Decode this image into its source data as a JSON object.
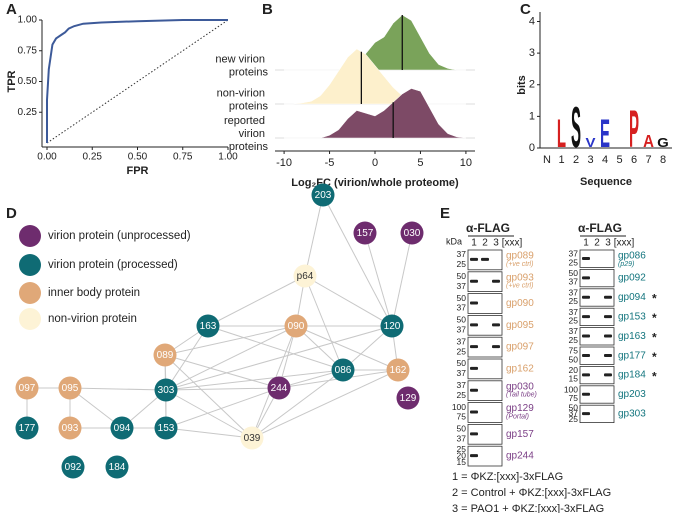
{
  "panels": [
    "A",
    "B",
    "C",
    "D",
    "E"
  ],
  "chart_data": [
    {
      "type": "line",
      "x": [
        0,
        0,
        0.01,
        0.02,
        0.03,
        0.05,
        0.08,
        0.1,
        0.12,
        0.15,
        0.2,
        0.3,
        0.5,
        0.75,
        1.0
      ],
      "values": [
        0,
        0.35,
        0.6,
        0.7,
        0.8,
        0.85,
        0.88,
        0.9,
        0.93,
        0.95,
        0.97,
        0.98,
        0.99,
        1.0,
        1.0
      ],
      "color": "#3d5a99",
      "xlim": [
        0,
        1
      ],
      "ylim": [
        0,
        1
      ],
      "xticks": [
        {
          "value": 0,
          "label": "0.00"
        },
        {
          "value": 0.25,
          "label": "0.25"
        },
        {
          "value": 0.5,
          "label": "0.50"
        },
        {
          "value": 0.75,
          "label": "0.75"
        },
        {
          "value": 1,
          "label": "1.00"
        }
      ],
      "yticks": [
        {
          "value": 0.25,
          "label": "0.25"
        },
        {
          "value": 0.5,
          "label": "0.50"
        },
        {
          "value": 0.75,
          "label": "0.75"
        },
        {
          "value": 1,
          "label": "1.00"
        }
      ],
      "xlabel": "FPR",
      "ylabel": "TPR"
    },
    {
      "type": "ridgeline",
      "x": [
        -10,
        -9,
        -8,
        -7,
        -6,
        -5,
        -4,
        -3,
        -2,
        -1,
        0,
        1,
        2,
        3,
        4,
        5,
        6,
        7,
        8,
        9,
        10
      ],
      "series": [
        {
          "name": "new virion proteins",
          "color": "#7aa35a",
          "median": 3,
          "values": [
            0,
            0,
            0,
            0,
            0,
            0,
            0,
            0.02,
            0.1,
            0.3,
            0.5,
            0.6,
            0.85,
            1.0,
            0.9,
            0.6,
            0.3,
            0.1,
            0.03,
            0,
            0
          ]
        },
        {
          "name": "non-virion proteins",
          "color": "#fdf0cc",
          "median": -1.5,
          "values": [
            0,
            0,
            0.02,
            0.05,
            0.15,
            0.35,
            0.6,
            0.85,
            1.0,
            0.9,
            0.7,
            0.5,
            0.3,
            0.15,
            0.06,
            0.02,
            0,
            0,
            0,
            0,
            0
          ]
        },
        {
          "name": "reported virion proteins",
          "color": "#7d4a66",
          "median": 2,
          "values": [
            0,
            0,
            0,
            0,
            0,
            0.05,
            0.15,
            0.35,
            0.5,
            0.45,
            0.4,
            0.5,
            0.65,
            0.8,
            0.9,
            0.85,
            0.55,
            0.25,
            0.08,
            0.02,
            0
          ]
        }
      ],
      "xlim": [
        -11,
        11
      ],
      "xticks": [
        -10,
        -5,
        0,
        5,
        10
      ],
      "xlabel": "Log₂FC (virion/whole proteome)"
    },
    {
      "type": "logo",
      "categories": [
        "N",
        "1",
        "2",
        "3",
        "4",
        "5",
        "6",
        "7",
        "8"
      ],
      "letters": [
        null,
        "L",
        "S",
        "V",
        "E",
        null,
        "P",
        "A",
        "G"
      ],
      "values": [
        null,
        0.9,
        1.3,
        0.3,
        0.9,
        null,
        1.2,
        0.4,
        0.3
      ],
      "colors": [
        null,
        "#d62020",
        "#111111",
        "#2a35c8",
        "#2a35c8",
        null,
        "#d62020",
        "#d62020",
        "#111111"
      ],
      "ylim": [
        0,
        4.3
      ],
      "yticks": [
        0,
        1,
        2,
        3,
        4
      ],
      "ylabel": "bits",
      "xlabel": "Sequence"
    }
  ],
  "network": {
    "legend": [
      {
        "label": "virion protein (unprocessed)",
        "color": "#6e2c6e"
      },
      {
        "label": "virion protein (processed)",
        "color": "#0f6b74"
      },
      {
        "label": "inner body protein",
        "color": "#e0a878"
      },
      {
        "label": "non-virion protein",
        "color": "#fdf3d6"
      }
    ],
    "nodes": [
      {
        "label": "p64",
        "group": 3
      },
      {
        "label": "203",
        "group": 1
      },
      {
        "label": "157",
        "group": 0
      },
      {
        "label": "030",
        "group": 0
      },
      {
        "label": "163",
        "group": 1
      },
      {
        "label": "090",
        "group": 2
      },
      {
        "label": "120",
        "group": 1
      },
      {
        "label": "089",
        "group": 2
      },
      {
        "label": "086",
        "group": 1
      },
      {
        "label": "162",
        "group": 2
      },
      {
        "label": "097",
        "group": 2
      },
      {
        "label": "095",
        "group": 2
      },
      {
        "label": "303",
        "group": 1
      },
      {
        "label": "244",
        "group": 0
      },
      {
        "label": "177",
        "group": 1
      },
      {
        "label": "093",
        "group": 2
      },
      {
        "label": "094",
        "group": 1
      },
      {
        "label": "153",
        "group": 1
      },
      {
        "label": "039",
        "group": 3
      },
      {
        "label": "129",
        "group": 0
      },
      {
        "label": "092",
        "group": 1
      },
      {
        "label": "184",
        "group": 1
      }
    ]
  },
  "blot": {
    "header": "α-FLAG",
    "kda": "kDa",
    "lanes": [
      "1",
      "2",
      "3",
      "[xxx]"
    ],
    "left": [
      {
        "label": "gp089",
        "sub": "(+ve ctrl)",
        "color": "#d9a06b",
        "kda": [
          "37",
          "25"
        ]
      },
      {
        "label": "gp093",
        "sub": "(+ve ctrl)",
        "color": "#d9a06b",
        "kda": [
          "50",
          "37"
        ]
      },
      {
        "label": "gp090",
        "color": "#d9a06b",
        "kda": [
          "50",
          "37"
        ]
      },
      {
        "label": "gp095",
        "color": "#d9a06b",
        "kda": [
          "50",
          "37"
        ]
      },
      {
        "label": "gp097",
        "color": "#d9a06b",
        "kda": [
          "37",
          "25"
        ]
      },
      {
        "label": "gp162",
        "color": "#d9a06b",
        "kda": [
          "50",
          "37"
        ]
      },
      {
        "label": "gp030",
        "sub": "(Tail tube)",
        "color": "#7b3f86",
        "kda": [
          "37",
          "25"
        ]
      },
      {
        "label": "gp129",
        "sub": "(Portal)",
        "color": "#7b3f86",
        "kda": [
          "100",
          "75"
        ]
      },
      {
        "label": "gp157",
        "color": "#7b3f86",
        "kda": [
          "50",
          "37"
        ]
      },
      {
        "label": "gp244",
        "color": "#7b3f86",
        "kda": [
          "25",
          "20",
          "15"
        ]
      }
    ],
    "right": [
      {
        "label": "gp086",
        "sub": "(p29)",
        "color": "#13757e",
        "kda": [
          "37",
          "25"
        ]
      },
      {
        "label": "gp092",
        "color": "#13757e",
        "kda": [
          "50",
          "37"
        ]
      },
      {
        "label": "gp094",
        "star": "*",
        "color": "#13757e",
        "kda": [
          "37",
          "25"
        ]
      },
      {
        "label": "gp153",
        "star": "*",
        "color": "#13757e",
        "kda": [
          "37",
          "25"
        ]
      },
      {
        "label": "gp163",
        "star": "*",
        "color": "#13757e",
        "kda": [
          "37",
          "25"
        ]
      },
      {
        "label": "gp177",
        "star": "*",
        "color": "#13757e",
        "kda": [
          "75",
          "50"
        ]
      },
      {
        "label": "gp184",
        "star": "*",
        "color": "#13757e",
        "kda": [
          "20",
          "15"
        ]
      },
      {
        "label": "gp203",
        "color": "#13757e",
        "kda": [
          "100",
          "75"
        ]
      },
      {
        "label": "gp303",
        "color": "#13757e",
        "kda": [
          "50",
          "37",
          "25"
        ]
      }
    ],
    "legend": [
      "1 = ΦKZ:[xxx]-3xFLAG",
      "2 = Control + ΦKZ:[xxx]-3xFLAG",
      "3 = PAO1 + ΦKZ:[xxx]-3xFLAG"
    ]
  }
}
